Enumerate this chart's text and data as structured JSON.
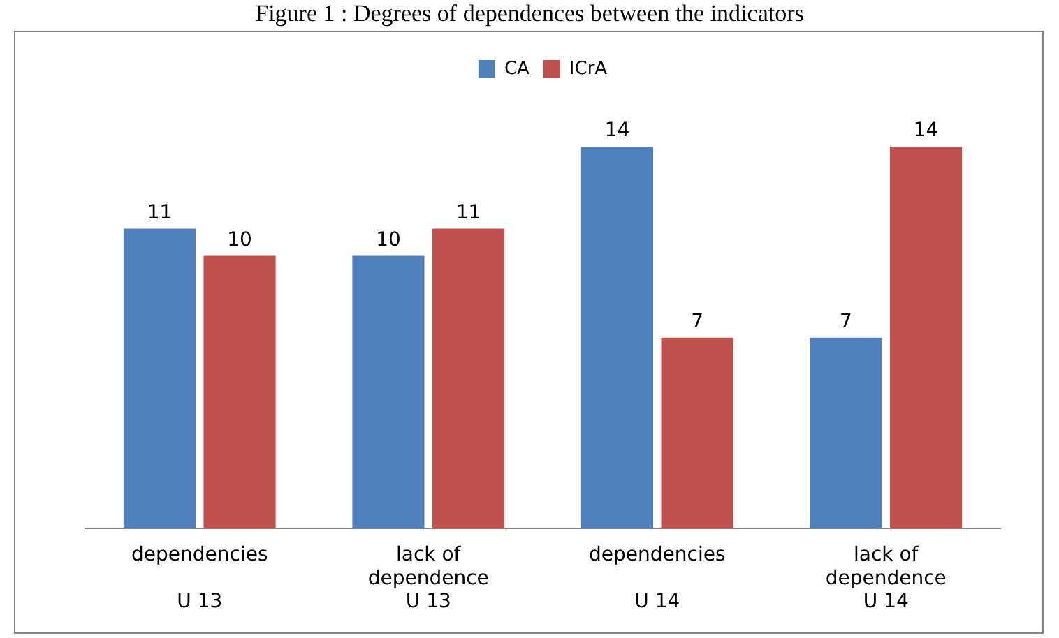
{
  "chart_data": {
    "type": "bar",
    "title": "Figure 1 : Degrees of dependences between the indicators",
    "categories": [
      "dependencies\n\nU 13",
      "lack of\ndependence\nU 13",
      "dependencies\n\nU 14",
      "lack of\ndependence\nU 14"
    ],
    "series": [
      {
        "name": "CA",
        "color": "#4f81bd",
        "values": [
          11,
          10,
          14,
          7
        ]
      },
      {
        "name": "ICrA",
        "color": "#c0504d",
        "values": [
          10,
          11,
          7,
          14
        ]
      }
    ],
    "data_labels": true,
    "legend": "top",
    "grid": false
  }
}
